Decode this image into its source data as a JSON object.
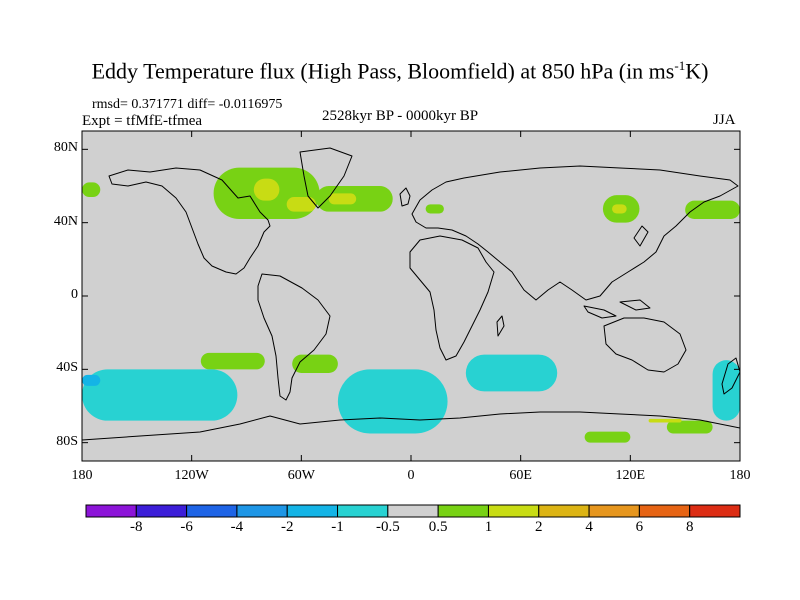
{
  "title": {
    "main": "Eddy Temperature flux (High Pass, Bloomfield) at 850 hPa (in ms",
    "sup": "-1",
    "end": "K)"
  },
  "subtitle": {
    "stats": "rmsd= 0.371771 diff= -0.0116975",
    "experiment": "Expt = tfMfE-tfmea",
    "period": "2528kyr BP - 0000kyr BP",
    "season": "JJA"
  },
  "map": {
    "projection": "cylindrical-equidistant",
    "lon_range": [
      -180,
      180
    ],
    "lat_range": [
      -90,
      90
    ],
    "background_color": "#d0d0d0",
    "lat_labels": [
      {
        "lat": 80,
        "text": "80N"
      },
      {
        "lat": 40,
        "text": "40N"
      },
      {
        "lat": 0,
        "text": "0"
      },
      {
        "lat": -40,
        "text": "40S"
      },
      {
        "lat": -80,
        "text": "80S"
      }
    ],
    "lon_labels": [
      {
        "lon": -180,
        "text": "180"
      },
      {
        "lon": -120,
        "text": "120W"
      },
      {
        "lon": -60,
        "text": "60W"
      },
      {
        "lon": 0,
        "text": "0"
      },
      {
        "lon": 60,
        "text": "60E"
      },
      {
        "lon": 120,
        "text": "120E"
      },
      {
        "lon": 180,
        "text": "180"
      }
    ],
    "anomaly_regions": [
      {
        "level": "0.5-1",
        "lon": [
          -180,
          -170
        ],
        "lat": [
          54,
          62
        ]
      },
      {
        "level": "0.5-1",
        "lon": [
          -108,
          -50
        ],
        "lat": [
          42,
          70
        ]
      },
      {
        "level": "1-2",
        "lon": [
          -86,
          -72
        ],
        "lat": [
          52,
          64
        ]
      },
      {
        "level": "1-2",
        "lon": [
          -68,
          -52
        ],
        "lat": [
          46,
          54
        ]
      },
      {
        "level": "0.5-1",
        "lon": [
          -52,
          -10
        ],
        "lat": [
          46,
          60
        ]
      },
      {
        "level": "1-2",
        "lon": [
          -45,
          -30
        ],
        "lat": [
          50,
          56
        ]
      },
      {
        "level": "0.5-1",
        "lon": [
          8,
          18
        ],
        "lat": [
          45,
          50
        ]
      },
      {
        "level": "0.5-1",
        "lon": [
          105,
          125
        ],
        "lat": [
          40,
          55
        ]
      },
      {
        "level": "1-2",
        "lon": [
          110,
          118
        ],
        "lat": [
          45,
          50
        ]
      },
      {
        "level": "0.5-1",
        "lon": [
          150,
          180
        ],
        "lat": [
          42,
          52
        ]
      },
      {
        "level": "0.5-1",
        "lon": [
          -115,
          -80
        ],
        "lat": [
          -31,
          -40
        ]
      },
      {
        "level": "0.5-1",
        "lon": [
          -65,
          -40
        ],
        "lat": [
          -32,
          -42
        ]
      },
      {
        "level": "-1--0.5",
        "lon": [
          -180,
          -95
        ],
        "lat": [
          -40,
          -68
        ]
      },
      {
        "level": "-2--1",
        "lon": [
          -180,
          -170
        ],
        "lat": [
          -43,
          -49
        ]
      },
      {
        "level": "-1--0.5",
        "lon": [
          -40,
          20
        ],
        "lat": [
          -40,
          -75
        ]
      },
      {
        "level": "-1--0.5",
        "lon": [
          30,
          80
        ],
        "lat": [
          -32,
          -52
        ]
      },
      {
        "level": "-1--0.5",
        "lon": [
          165,
          180
        ],
        "lat": [
          -35,
          -68
        ]
      },
      {
        "level": "0.5-1",
        "lon": [
          140,
          165
        ],
        "lat": [
          -68,
          -75
        ]
      },
      {
        "level": "1-2",
        "lon": [
          130,
          148
        ],
        "lat": [
          -67,
          -69
        ]
      },
      {
        "level": "0.5-1",
        "lon": [
          95,
          120
        ],
        "lat": [
          -74,
          -80
        ]
      }
    ]
  },
  "colorbar": {
    "colors": [
      "#8c14d8",
      "#3c1ed8",
      "#1e64e6",
      "#1e96e6",
      "#14b4e6",
      "#28d2d2",
      "#d0d0d0",
      "#78d214",
      "#c8dc14",
      "#dcb414",
      "#e6961e",
      "#e66414",
      "#dc2d14"
    ],
    "labels": [
      "-8",
      "-6",
      "-4",
      "-2",
      "-1",
      "-0.5",
      "0.5",
      "1",
      "2",
      "4",
      "6",
      "8"
    ]
  }
}
